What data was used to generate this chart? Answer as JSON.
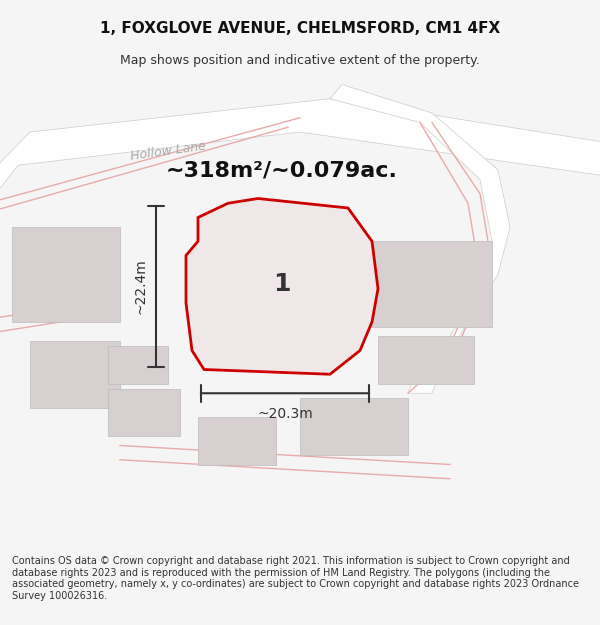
{
  "title": "1, FOXGLOVE AVENUE, CHELMSFORD, CM1 4FX",
  "subtitle": "Map shows position and indicative extent of the property.",
  "area_label": "~318m²/~0.079ac.",
  "width_label": "~20.3m",
  "height_label": "~22.4m",
  "plot_number": "1",
  "footer": "Contains OS data © Crown copyright and database right 2021. This information is subject to Crown copyright and database rights 2023 and is reproduced with the permission of HM Land Registry. The polygons (including the associated geometry, namely x, y co-ordinates) are subject to Crown copyright and database rights 2023 Ordnance Survey 100026316.",
  "bg_color": "#f5f5f5",
  "map_bg": "#f0eeee",
  "road_color": "#ffffff",
  "plot_fill": "#e8e0e0",
  "plot_outline": "#cc0000",
  "building_fill": "#d0caca",
  "road_line_color": "#e8b0b0",
  "dim_color": "#333333",
  "road_label_color": "#aaaaaa",
  "title_fontsize": 11,
  "subtitle_fontsize": 9,
  "area_label_fontsize": 16,
  "dim_label_fontsize": 10,
  "plot_num_fontsize": 18,
  "footer_fontsize": 7
}
